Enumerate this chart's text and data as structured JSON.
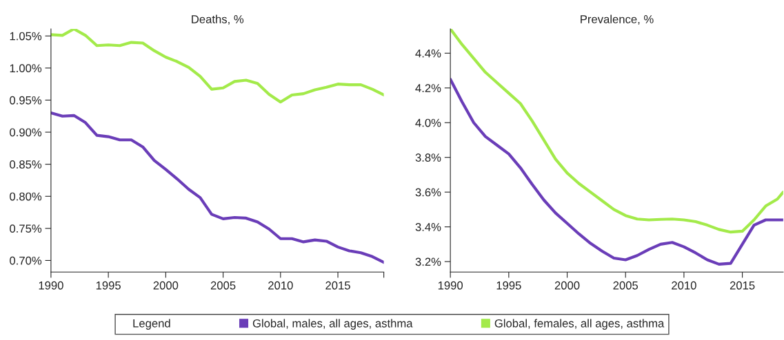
{
  "chart_data": [
    {
      "type": "line",
      "title": "Deaths, %",
      "legend": "bottom",
      "legend_title": "Legend",
      "grid": false,
      "x": [
        1990,
        1991,
        1992,
        1993,
        1994,
        1995,
        1996,
        1997,
        1998,
        1999,
        2000,
        2001,
        2002,
        2003,
        2004,
        2005,
        2006,
        2007,
        2008,
        2009,
        2010,
        2011,
        2012,
        2013,
        2014,
        2015,
        2016,
        2017,
        2018,
        2019
      ],
      "series": [
        {
          "name": "Global, males, all ages, asthma",
          "color": "#6a3db8",
          "values": [
            0.93,
            0.925,
            0.926,
            0.915,
            0.895,
            0.893,
            0.888,
            0.888,
            0.877,
            0.856,
            0.842,
            0.827,
            0.811,
            0.798,
            0.772,
            0.765,
            0.767,
            0.766,
            0.76,
            0.749,
            0.734,
            0.734,
            0.729,
            0.732,
            0.73,
            0.721,
            0.715,
            0.712,
            0.706,
            0.697
          ]
        },
        {
          "name": "Global, females, all ages, asthma",
          "color": "#a3ea4a",
          "values": [
            1.052,
            1.051,
            1.061,
            1.051,
            1.035,
            1.036,
            1.035,
            1.04,
            1.039,
            1.027,
            1.017,
            1.01,
            1.001,
            0.987,
            0.967,
            0.969,
            0.979,
            0.981,
            0.976,
            0.959,
            0.947,
            0.958,
            0.96,
            0.966,
            0.97,
            0.975,
            0.974,
            0.974,
            0.967,
            0.958
          ]
        }
      ],
      "xlim": [
        1990,
        2019
      ],
      "xticks": [
        1990,
        1995,
        2000,
        2005,
        2010,
        2015,
        {
          "value": 2019,
          "label": null
        }
      ],
      "ylim": [
        0.682,
        1.061
      ],
      "yticks": [
        {
          "value": 0.7,
          "label": "0.70%"
        },
        {
          "value": 0.75,
          "label": "0.75%"
        },
        {
          "value": 0.8,
          "label": "0.80%"
        },
        {
          "value": 0.85,
          "label": "0.85%"
        },
        {
          "value": 0.9,
          "label": "0.90%"
        },
        {
          "value": 0.95,
          "label": "0.95%"
        },
        {
          "value": 1.0,
          "label": "1.00%"
        },
        {
          "value": 1.05,
          "label": "1.05%"
        }
      ]
    },
    {
      "type": "line",
      "title": "Prevalence, %",
      "grid": false,
      "x": [
        1990,
        1991,
        1992,
        1993,
        1994,
        1995,
        1996,
        1997,
        1998,
        1999,
        2000,
        2001,
        2002,
        2003,
        2004,
        2005,
        2006,
        2007,
        2008,
        2009,
        2010,
        2011,
        2012,
        2013,
        2014,
        2015,
        2016,
        2017,
        2018,
        2018.5
      ],
      "series": [
        {
          "color": "#6a3db8",
          "values": [
            4.25,
            4.12,
            4.0,
            3.92,
            3.87,
            3.82,
            3.74,
            3.645,
            3.555,
            3.48,
            3.42,
            3.36,
            3.305,
            3.26,
            3.22,
            3.21,
            3.235,
            3.27,
            3.3,
            3.31,
            3.285,
            3.25,
            3.21,
            3.185,
            3.19,
            3.3,
            3.41,
            3.44,
            3.44,
            3.44
          ]
        },
        {
          "color": "#a3ea4a",
          "values": [
            4.54,
            4.45,
            4.37,
            4.29,
            4.23,
            4.17,
            4.11,
            4.01,
            3.9,
            3.79,
            3.71,
            3.65,
            3.6,
            3.55,
            3.5,
            3.465,
            3.445,
            3.44,
            3.443,
            3.445,
            3.44,
            3.43,
            3.41,
            3.385,
            3.37,
            3.375,
            3.44,
            3.52,
            3.56,
            3.6
          ]
        }
      ],
      "xlim": [
        1990,
        2018.5
      ],
      "xticks": [
        1990,
        1995,
        2000,
        2005,
        2010,
        2015
      ],
      "ylim": [
        3.14,
        4.54
      ],
      "yticks": [
        {
          "value": 3.2,
          "label": "3.2%"
        },
        {
          "value": 3.4,
          "label": "3.4%"
        },
        {
          "value": 3.6,
          "label": "3.6%"
        },
        {
          "value": 3.8,
          "label": "3.8%"
        },
        {
          "value": 4.0,
          "label": "4.0%"
        },
        {
          "value": 4.2,
          "label": "4.2%"
        },
        {
          "value": 4.4,
          "label": "4.4%"
        }
      ]
    }
  ]
}
